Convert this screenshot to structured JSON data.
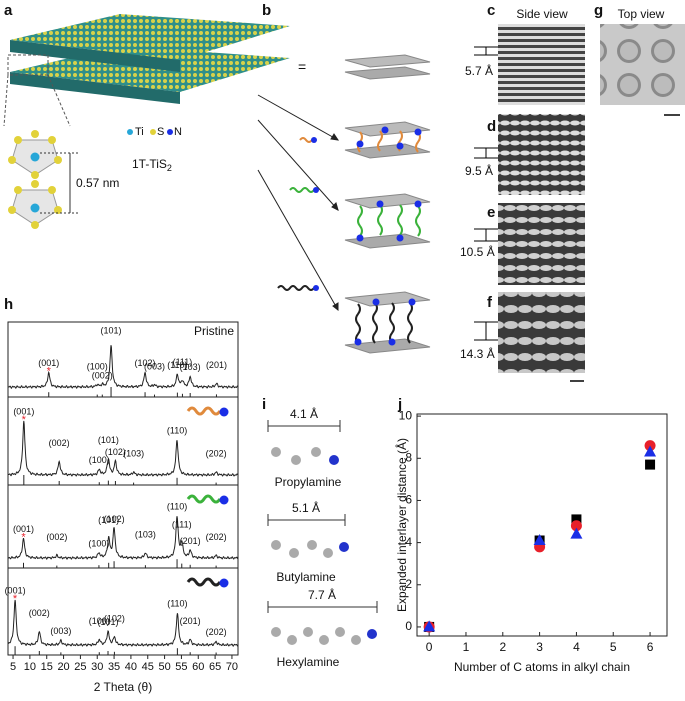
{
  "labels": [
    "a",
    "b",
    "c",
    "g",
    "d",
    "e",
    "f",
    "h",
    "i",
    "j"
  ],
  "panel_a": {
    "legend": [
      "Ti",
      "S",
      "N"
    ],
    "formula": "1T-TiS",
    "formula_sub": "2",
    "distance": "0.57 nm"
  },
  "panel_b": {
    "equals": "="
  },
  "panel_c_f": {
    "title": "Side view",
    "spacings": [
      "5.7 Å",
      "9.5 Å",
      "10.5 Å",
      "14.3 Å"
    ]
  },
  "panel_g": {
    "title": "Top view"
  },
  "panel_i": {
    "molecules": [
      {
        "length": "4.1 Å",
        "name": "Propylamine"
      },
      {
        "length": "5.1 Å",
        "name": "Butylamine"
      },
      {
        "length": "7.7 Å",
        "name": "Hexylamine"
      }
    ]
  },
  "chart_data": [
    {
      "type": "line",
      "xlabel": "2 Theta (θ)",
      "xlim": [
        3.5,
        71.8
      ],
      "xticks": [
        5,
        10,
        15,
        20,
        25,
        30,
        35,
        40,
        45,
        50,
        55,
        60,
        65,
        70
      ],
      "panels": [
        {
          "name": "Pristine",
          "peaks": [
            {
              "label": "(001)",
              "x": 15.6,
              "intensity": 0.35
            },
            {
              "label": "(100)",
              "x": 30.0,
              "intensity": 0.05
            },
            {
              "label": "(002)",
              "x": 31.5,
              "intensity": 0.05
            },
            {
              "label": "(101)",
              "x": 34.1,
              "intensity": 1.0
            },
            {
              "label": "(102)",
              "x": 44.2,
              "intensity": 0.35
            },
            {
              "label": "(003)",
              "x": 47.0,
              "intensity": 0.05
            },
            {
              "label": "(110)",
              "x": 53.8,
              "intensity": 0.3
            },
            {
              "label": "(111)",
              "x": 55.3,
              "intensity": 0.15
            },
            {
              "label": "(103)",
              "x": 57.6,
              "intensity": 0.25
            },
            {
              "label": "(201)",
              "x": 65.4,
              "intensity": 0.08
            }
          ]
        },
        {
          "peaks": [
            {
              "label": "(001)",
              "x": 8.2,
              "intensity": 1.0
            },
            {
              "label": "(002)",
              "x": 18.7,
              "intensity": 0.25
            },
            {
              "label": "(100)",
              "x": 30.6,
              "intensity": 0.1
            },
            {
              "label": "(101)",
              "x": 33.3,
              "intensity": 0.3
            },
            {
              "label": "(102)",
              "x": 35.4,
              "intensity": 0.25
            },
            {
              "label": "(103)",
              "x": 40.8,
              "intensity": 0.05
            },
            {
              "label": "(110)",
              "x": 53.7,
              "intensity": 0.65
            },
            {
              "label": "(202)",
              "x": 65.3,
              "intensity": 0.05
            }
          ]
        },
        {
          "peaks": [
            {
              "label": "(001)",
              "x": 8.1,
              "intensity": 0.4
            },
            {
              "label": "(002)",
              "x": 18.0,
              "intensity": 0.05
            },
            {
              "label": "(100)",
              "x": 30.5,
              "intensity": 0.1
            },
            {
              "label": "(101)",
              "x": 33.4,
              "intensity": 0.4
            },
            {
              "label": "(102)",
              "x": 35.0,
              "intensity": 0.6
            },
            {
              "label": "(103)",
              "x": 44.3,
              "intensity": 0.1
            },
            {
              "label": "(110)",
              "x": 53.7,
              "intensity": 0.85
            },
            {
              "label": "(111)",
              "x": 55.1,
              "intensity": 0.3
            },
            {
              "label": "(201)",
              "x": 57.6,
              "intensity": 0.15
            },
            {
              "label": "(202)",
              "x": 65.3,
              "intensity": 0.05
            }
          ]
        },
        {
          "peaks": [
            {
              "label": "(001)",
              "x": 5.6,
              "intensity": 0.85
            },
            {
              "label": "(002)",
              "x": 12.8,
              "intensity": 0.25
            },
            {
              "label": "(003)",
              "x": 19.2,
              "intensity": 0.08
            },
            {
              "label": "(100)",
              "x": 30.6,
              "intensity": 0.1
            },
            {
              "label": "(101)",
              "x": 33.2,
              "intensity": 0.25
            },
            {
              "label": "(102)",
              "x": 35.1,
              "intensity": 0.15
            },
            {
              "label": "(110)",
              "x": 53.8,
              "intensity": 0.6
            },
            {
              "label": "(201)",
              "x": 57.6,
              "intensity": 0.1
            },
            {
              "label": "(202)",
              "x": 65.3,
              "intensity": 0.06
            }
          ]
        }
      ]
    },
    {
      "type": "scatter",
      "xlabel": "Number of C atoms in alkyl chain",
      "ylabel": "Expanded interlayer distance (Å)",
      "x": [
        0,
        3,
        4,
        6
      ],
      "xlim": [
        -0.33,
        6.46
      ],
      "xticks": [
        0,
        1,
        2,
        3,
        4,
        5,
        6
      ],
      "ylim": [
        -0.43,
        10.1
      ],
      "yticks": [
        0,
        2,
        4,
        6,
        8,
        10
      ],
      "series": [
        {
          "color": "#000000",
          "marker": "square",
          "values": [
            0,
            4.1,
            5.1,
            7.7
          ]
        },
        {
          "color": "#e8202a",
          "marker": "circle",
          "values": [
            0,
            3.8,
            4.8,
            8.6
          ]
        },
        {
          "color": "#1a2ee6",
          "marker": "triangle",
          "values": [
            0,
            4.1,
            4.4,
            8.3
          ]
        }
      ]
    }
  ]
}
